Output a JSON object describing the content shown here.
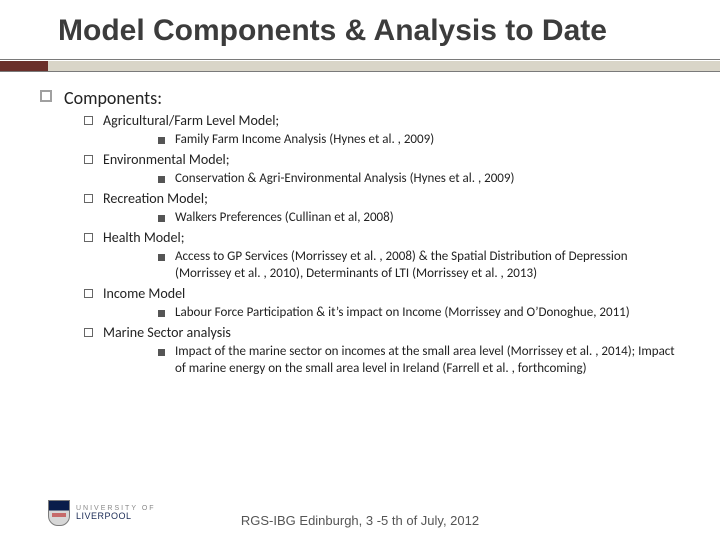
{
  "title": "Model Components & Analysis to Date",
  "colors": {
    "accent": "#6a2f2a",
    "bar": "#d9d5c8",
    "rule": "#7a7a7a",
    "title_color": "#3c3c3c",
    "background": "#ffffff"
  },
  "l1": {
    "heading": "Components:"
  },
  "items": [
    {
      "label": "Agricultural/Farm Level Model;",
      "sub": "Family Farm Income Analysis (Hynes et al. , 2009)"
    },
    {
      "label": "Environmental Model;",
      "sub": "Conservation & Agri-Environmental Analysis (Hynes et al. , 2009)"
    },
    {
      "label": "Recreation Model;",
      "sub": "Walkers Preferences (Cullinan et al, 2008)"
    },
    {
      "label": "Health Model;",
      "sub": "Access to GP Services (Morrissey et al. , 2008) & the Spatial Distribution of Depression (Morrissey et al. , 2010), Determinants of LTI (Morrissey et al. , 2013)"
    },
    {
      "label": "Income Model",
      "sub": "Labour Force Participation & it’s impact on Income (Morrissey and O’Donoghue, 2011)"
    },
    {
      "label": "Marine Sector analysis",
      "sub": "Impact of the marine sector on incomes at the small area level (Morrissey et al. , 2014); Impact of marine energy on the small area level in Ireland (Farrell et al. , forthcoming)"
    }
  ],
  "footer": {
    "text": "RGS-IBG Edinburgh, 3 -5 th of July, 2012"
  },
  "logo": {
    "line1": "UNIVERSITY OF",
    "line2": "LIVERPOOL"
  }
}
